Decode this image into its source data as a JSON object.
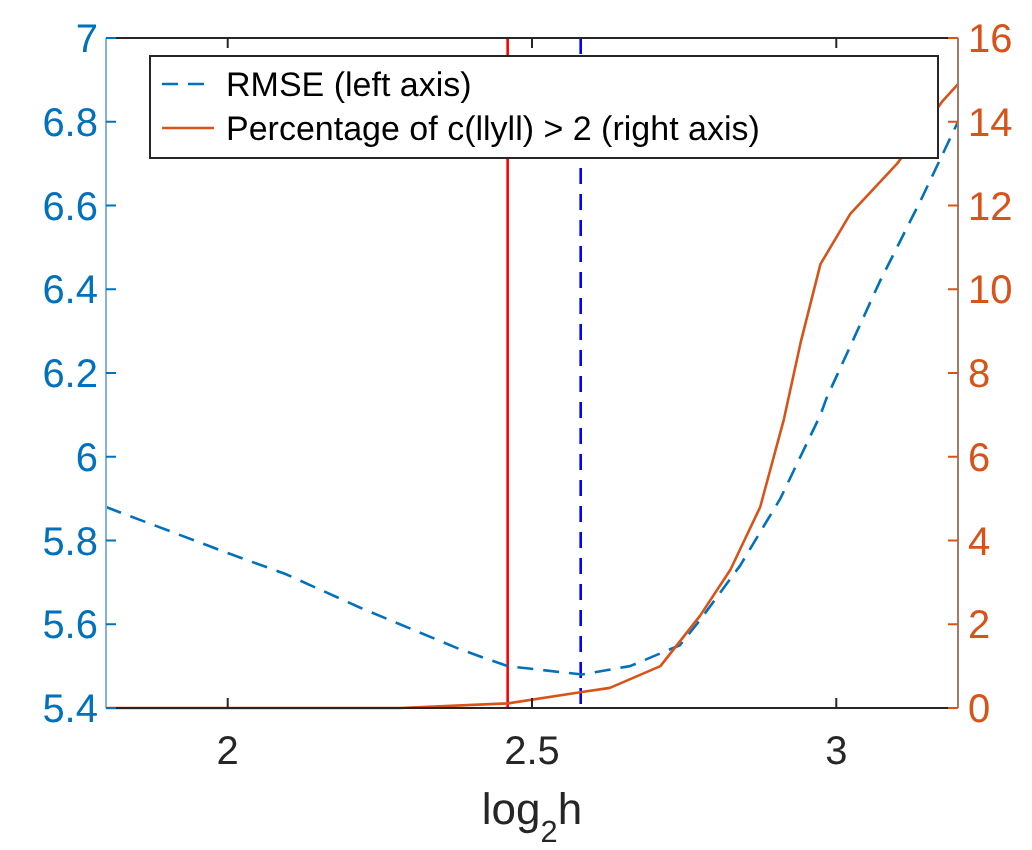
{
  "chart_data": {
    "type": "line",
    "xlabel": "log$_{2}$h",
    "xlim": [
      1.8,
      3.2
    ],
    "xticks": [
      2,
      2.5,
      3
    ],
    "ylim": [
      5.4,
      7
    ],
    "yticks": [
      5.4,
      5.6,
      5.8,
      6,
      6.2,
      6.4,
      6.6,
      6.8,
      7
    ],
    "y2lim": [
      0,
      16
    ],
    "y2ticks": [
      0,
      2,
      4,
      6,
      8,
      10,
      12,
      14,
      16
    ],
    "grid": false,
    "legend": "top",
    "marker": "none",
    "series": [
      {
        "name": "RMSE (left axis)",
        "color": "#0072bd",
        "line_style": "dashed",
        "x": [
          1.8,
          2.0,
          2.095,
          2.217,
          2.382,
          2.46,
          2.582,
          2.661,
          2.743,
          2.776,
          2.842,
          2.908,
          2.974,
          2.984,
          3.072,
          3.138,
          3.2
        ],
        "values": [
          5.88,
          5.77,
          5.72,
          5.64,
          5.54,
          5.5,
          5.48,
          5.5,
          5.55,
          5.61,
          5.74,
          5.9,
          6.1,
          6.14,
          6.42,
          6.61,
          6.8
        ]
      },
      {
        "name": "Percentage of c(llyll) > 2 (right axis)",
        "color": "#d95319",
        "line_style": "solid",
        "axis": "y2",
        "x": [
          1.8,
          2.283,
          2.46,
          2.582,
          2.628,
          2.711,
          2.776,
          2.826,
          2.875,
          2.914,
          2.941,
          2.974,
          3.023,
          3.1,
          3.175,
          3.2
        ],
        "values": [
          0,
          0,
          0.11,
          0.38,
          0.48,
          1.0,
          2.2,
          3.3,
          4.8,
          6.9,
          8.7,
          10.6,
          11.8,
          13.0,
          14.5,
          14.9
        ]
      }
    ],
    "ref_lines": [
      {
        "axis": "x",
        "value": 2.46,
        "label": null,
        "color": "#ff0000",
        "line_style": "solid"
      },
      {
        "axis": "x",
        "value": 2.58,
        "label": null,
        "color": "#0000ff",
        "line_style": "dashed"
      }
    ]
  }
}
